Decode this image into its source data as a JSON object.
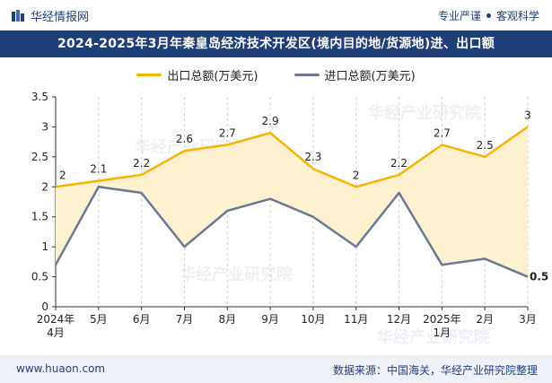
{
  "header": {
    "brand": "华经情报网",
    "tagline_left": "专业严谨",
    "tagline_right": "客观科学"
  },
  "title": "2024-2025年3月年秦皇岛经济技术开发区(境内目的地/货源地)进、出口额",
  "footer": {
    "website": "www.huaon.com",
    "source": "数据来源：中国海关，华经产业研究院整理"
  },
  "watermark": "华经产业研究院",
  "colors": {
    "export": "#f5b400",
    "import": "#6b7896",
    "fill": "#fdf1cf",
    "header": "#1f3f78"
  },
  "chart_data": {
    "type": "line",
    "categories": [
      "2024年\n4月",
      "5月",
      "6月",
      "7月",
      "8月",
      "9月",
      "10月",
      "11月",
      "12月",
      "2025年\n1月",
      "2月",
      "3月"
    ],
    "series": [
      {
        "name": "出口总额(万美元)",
        "values": [
          2,
          2.1,
          2.2,
          2.6,
          2.7,
          2.9,
          2.3,
          2,
          2.2,
          2.7,
          2.5,
          3
        ],
        "labels": true
      },
      {
        "name": "进口总额(万美元)",
        "values": [
          0.7,
          2.0,
          1.9,
          1.0,
          1.6,
          1.8,
          1.5,
          1.0,
          1.9,
          0.7,
          0.8,
          0.5
        ],
        "labels_last_only": true
      }
    ],
    "ylim": [
      0,
      3.5
    ],
    "yticks": [
      0,
      0.5,
      1,
      1.5,
      2,
      2.5,
      3,
      3.5
    ],
    "legend_position": "top-center",
    "area_between_series": true,
    "grid": "vertical-dashed"
  }
}
